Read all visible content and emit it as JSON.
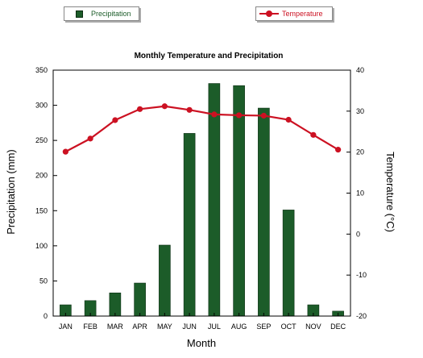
{
  "legend": {
    "precip_label": "Precipitation",
    "temp_label": "Temperature"
  },
  "chart_data": {
    "type": "bar",
    "title": "Monthly Temperature and Precipitation",
    "xlabel": "Month",
    "ylabel": "Precipitation (mm)",
    "y2label": "Temperature (°C)",
    "categories": [
      "JAN",
      "FEB",
      "MAR",
      "APR",
      "MAY",
      "JUN",
      "JUL",
      "AUG",
      "SEP",
      "OCT",
      "NOV",
      "DEC"
    ],
    "series": [
      {
        "name": "Precipitation",
        "type": "bar",
        "axis": "left",
        "values": [
          16,
          22,
          33,
          47,
          101,
          260,
          331,
          328,
          296,
          151,
          16,
          7
        ]
      },
      {
        "name": "Temperature",
        "type": "line",
        "axis": "right",
        "values": [
          20.1,
          23.3,
          27.8,
          30.5,
          31.2,
          30.3,
          29.2,
          29.0,
          28.9,
          27.9,
          24.2,
          20.6
        ]
      }
    ],
    "ylim": [
      0,
      350
    ],
    "yticks": [
      0,
      50,
      100,
      150,
      200,
      250,
      300,
      350
    ],
    "y2lim": [
      -20,
      40
    ],
    "y2ticks": [
      -20,
      -10,
      0,
      10,
      20,
      30,
      40
    ],
    "grid": false,
    "legend_position": "top",
    "colors": {
      "bar": "#1c5c29",
      "line": "#cc1122"
    }
  }
}
